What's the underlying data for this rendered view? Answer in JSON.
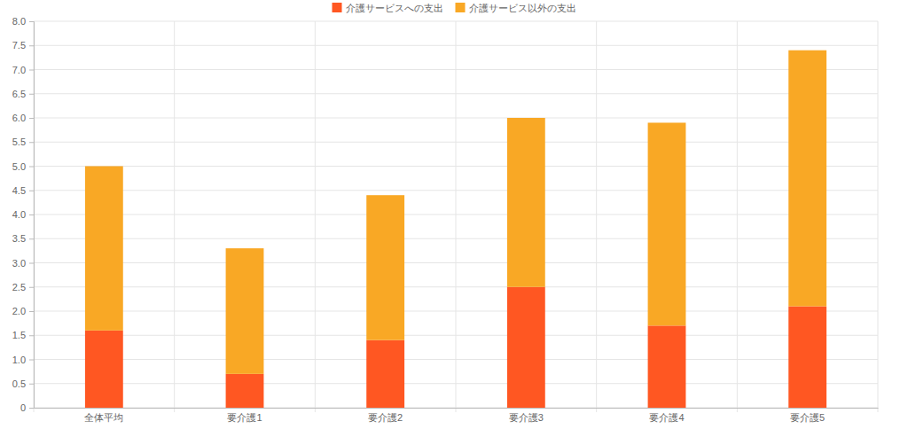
{
  "chart_data": {
    "type": "bar",
    "stacked": true,
    "grid": true,
    "legend": "top",
    "categories": [
      "全体平均",
      "要介護1",
      "要介護2",
      "要介護3",
      "要介護4",
      "要介護5"
    ],
    "series": [
      {
        "name": "介護サービスへの支出",
        "color": "#ff5722",
        "values": [
          1.6,
          0.7,
          1.4,
          2.5,
          1.7,
          2.1
        ]
      },
      {
        "name": "介護サービス以外の支出",
        "color": "#f9a825",
        "values": [
          3.4,
          2.6,
          3.0,
          3.5,
          4.2,
          5.3
        ]
      }
    ],
    "ylim": [
      0,
      8
    ],
    "yticks": [
      0,
      0.5,
      {
        "value": 1,
        "label": "1.0"
      },
      1.5,
      {
        "value": 2,
        "label": "2.0"
      },
      2.5,
      {
        "value": 3,
        "label": "3.0"
      },
      3.5,
      {
        "value": 4,
        "label": "4.0"
      },
      4.5,
      {
        "value": 5,
        "label": "5.0"
      },
      5.5,
      {
        "value": 6,
        "label": "6.0"
      },
      6.5,
      {
        "value": 7,
        "label": "7.0"
      },
      7.5,
      {
        "value": 8,
        "label": "8.0"
      }
    ]
  }
}
